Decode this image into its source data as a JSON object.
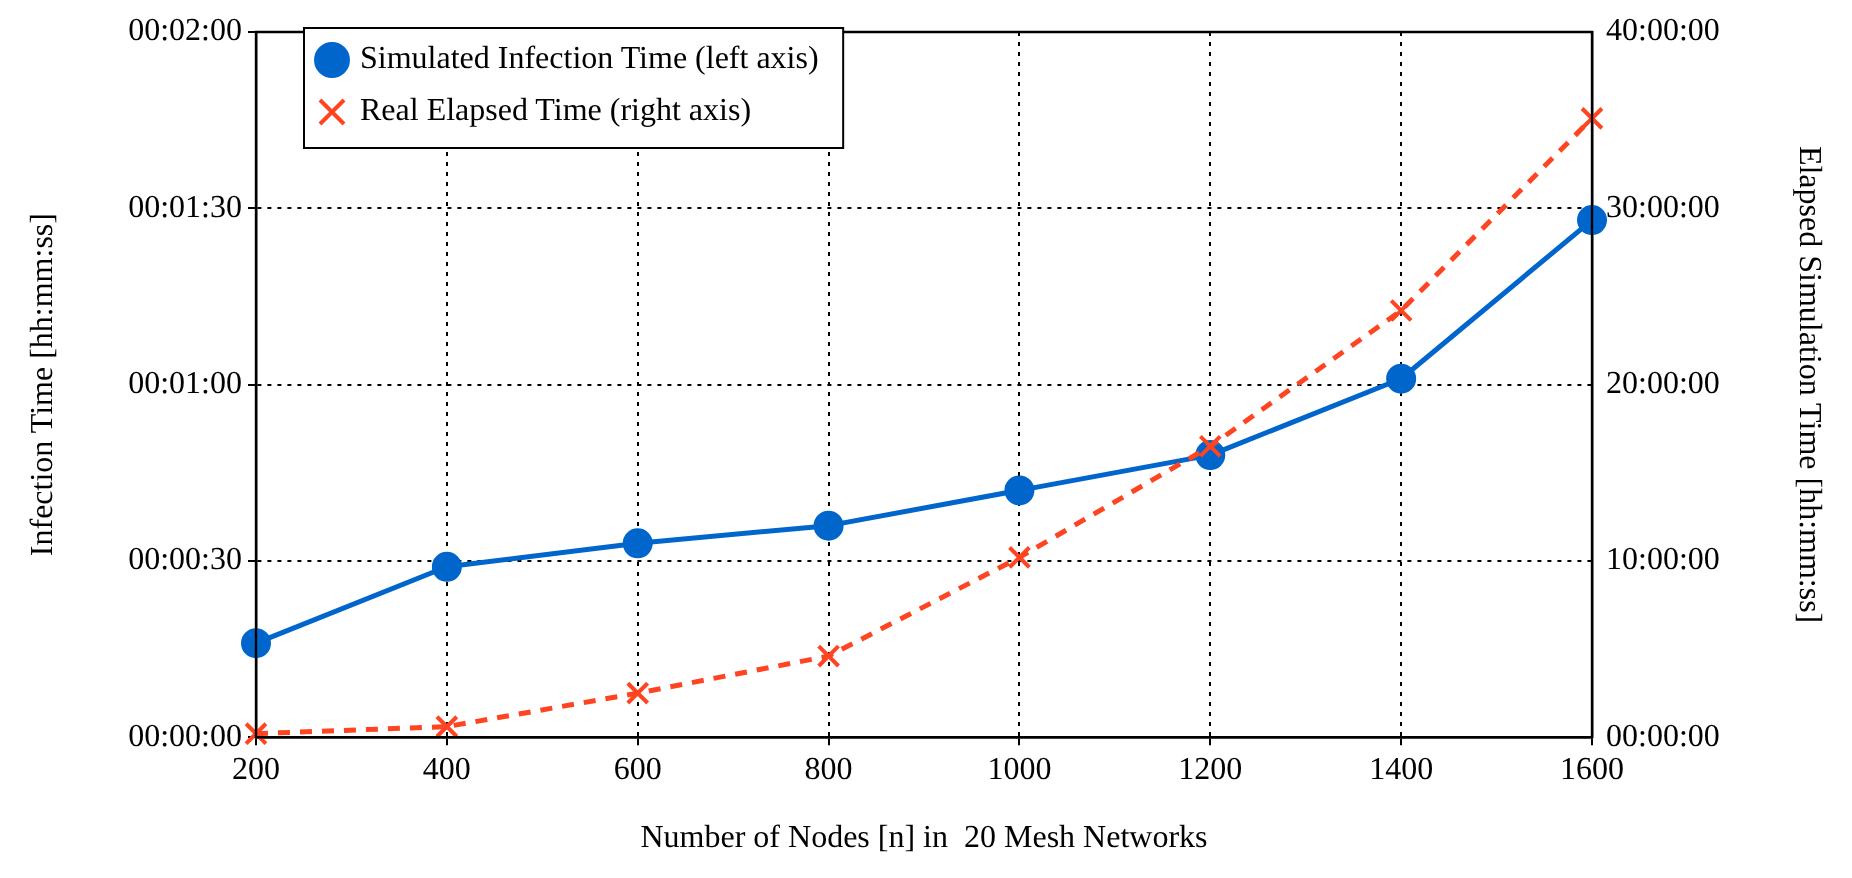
{
  "chart_data": {
    "type": "line",
    "xlabel": "Number of Nodes [n] in  20 Mesh Networks",
    "ylabel": "Infection Time [hh:mm:ss]",
    "y2label": "Elapsed Simulation Time [hh:mm:ss]",
    "x": [
      200,
      400,
      600,
      800,
      1000,
      1200,
      1400,
      1600
    ],
    "series": [
      {
        "name": "Simulated Infection Time (left axis)",
        "color": "#0066cc",
        "marker": "circle",
        "line_style": "solid",
        "values": [
          16,
          29,
          33,
          36,
          42,
          48,
          61,
          88
        ]
      },
      {
        "name": "Real Elapsed Time (right axis)",
        "color": "#ff4422",
        "marker": "cross",
        "line_style": "dashed",
        "axis": "y2",
        "values": [
          0.2,
          0.6,
          2.5,
          4.6,
          10.2,
          16.5,
          24.2,
          35.1
        ]
      }
    ],
    "xlim": [
      200,
      1600
    ],
    "xticks": [
      200,
      400,
      600,
      800,
      1000,
      1200,
      1400,
      1600
    ],
    "ylim": [
      0,
      120
    ],
    "yticks": [
      {
        "value": 0,
        "label": "00:00:00"
      },
      {
        "value": 30,
        "label": "00:00:30"
      },
      {
        "value": 60,
        "label": "00:01:00"
      },
      {
        "value": 90,
        "label": "00:01:30"
      },
      {
        "value": 120,
        "label": "00:02:00"
      }
    ],
    "y2lim": [
      0,
      40
    ],
    "y2ticks": [
      {
        "value": 0,
        "label": "00:00:00"
      },
      {
        "value": 10,
        "label": "10:00:00"
      },
      {
        "value": 20,
        "label": "20:00:00"
      },
      {
        "value": 30,
        "label": "30:00:00"
      },
      {
        "value": 40,
        "label": "40:00:00"
      }
    ],
    "grid": true,
    "legend": "top left"
  }
}
